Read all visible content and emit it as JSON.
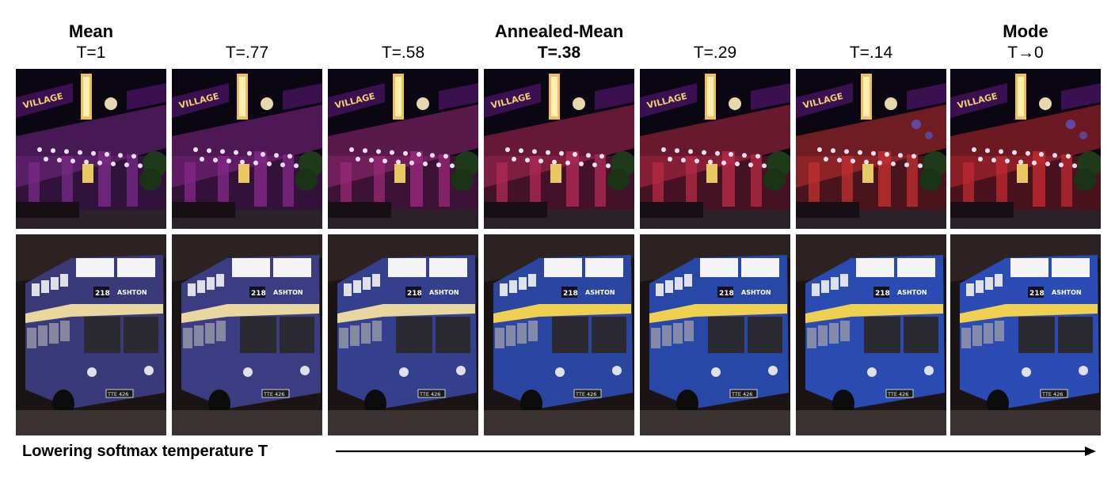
{
  "columns": [
    {
      "top_label": "Mean",
      "temp_label": "T=1",
      "temp_bold": false,
      "theater_tint": "#7a2a8a",
      "bus_tint": "#3a3a7a"
    },
    {
      "top_label": "",
      "temp_label": "T=.77",
      "temp_bold": false,
      "theater_tint": "#85288a",
      "bus_tint": "#3b3c82"
    },
    {
      "top_label": "",
      "temp_label": "T=.58",
      "temp_bold": false,
      "theater_tint": "#9a2a7a",
      "bus_tint": "#34408e"
    },
    {
      "top_label": "Annealed-Mean",
      "temp_label": "T=.38",
      "temp_bold": true,
      "theater_tint": "#b02a55",
      "bus_tint": "#2a46a0"
    },
    {
      "top_label": "",
      "temp_label": "T=.29",
      "temp_bold": false,
      "theater_tint": "#b82a45",
      "bus_tint": "#2848a8"
    },
    {
      "top_label": "",
      "temp_label": "T=.14",
      "temp_bold": false,
      "theater_tint": "#c23030",
      "bus_tint": "#2a4cb2"
    },
    {
      "top_label": "Mode",
      "temp_label": "T→0",
      "temp_bold": false,
      "theater_tint": "#c02a30",
      "bus_tint": "#2a4cb4"
    }
  ],
  "theater_sign_text": "VILLAGE",
  "bus_route_number": "218",
  "bus_destination": "ASHTON",
  "bus_plate": "TTE 426",
  "caption": "Lowering softmax temperature T"
}
